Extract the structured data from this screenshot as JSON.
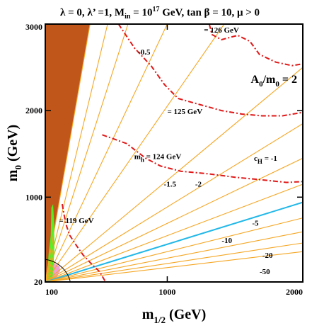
{
  "chart_data": {
    "type": "line",
    "title_parts": {
      "lambda": "λ = 0, λ’ =1, M",
      "min_sub": "in",
      "mass": " = 10",
      "exp": "17",
      "rest": " GeV, tan β = 10,  μ > 0"
    },
    "inset_label": {
      "main": "A",
      "sub": "0",
      "rest": "/m",
      "sub2": "0",
      "tail": " = 2"
    },
    "xlabel": {
      "main": "m",
      "sub": "1/2",
      "rest": " (GeV)"
    },
    "ylabel": {
      "main": "m",
      "sub": "0",
      "rest": " (GeV)"
    },
    "xlim": [
      100,
      2000
    ],
    "ylim": [
      20,
      3000
    ],
    "xticks": [
      {
        "value": 100,
        "label": "100"
      },
      {
        "value": 1000,
        "label": "1000"
      },
      {
        "value": 2000,
        "label": "2000"
      }
    ],
    "yticks": [
      {
        "value": 20,
        "label": "20"
      },
      {
        "value": 1000,
        "label": "1000"
      },
      {
        "value": 2000,
        "label": "2000"
      },
      {
        "value": 3000,
        "label": "3000"
      }
    ],
    "colors": {
      "stau_lsp": "#c0561a",
      "cosmo_green": "#55ee22",
      "pink": "#f0a0d0",
      "cH": "#f5a623",
      "cH_zero": "#22b8e8",
      "mh": "#e01818",
      "frame": "#000000"
    },
    "stau_region": [
      [
        100,
        40
      ],
      [
        430,
        3000
      ],
      [
        100,
        3000
      ]
    ],
    "green_strip": [
      [
        128,
        30
      ],
      [
        152,
        30
      ],
      [
        160,
        200
      ],
      [
        168,
        420
      ],
      [
        165,
        700
      ],
      [
        158,
        920
      ],
      [
        145,
        880
      ],
      [
        140,
        560
      ],
      [
        125,
        350
      ],
      [
        112,
        80
      ],
      [
        108,
        30
      ]
    ],
    "pink_region": [
      [
        110,
        60
      ],
      [
        150,
        250
      ],
      [
        205,
        200
      ],
      [
        210,
        150
      ],
      [
        180,
        60
      ]
    ],
    "cH_lines": [
      {
        "label": "",
        "points": [
          [
            100,
            20
          ],
          [
            430,
            3000
          ]
        ]
      },
      {
        "label": "",
        "points": [
          [
            100,
            20
          ],
          [
            560,
            3000
          ]
        ]
      },
      {
        "label": "-0.5",
        "points": [
          [
            100,
            20
          ],
          [
            710,
            3000
          ]
        ]
      },
      {
        "label": "",
        "points": [
          [
            100,
            20
          ],
          [
            1000,
            3000
          ]
        ]
      },
      {
        "label": "",
        "points": [
          [
            100,
            20
          ],
          [
            1420,
            3000
          ]
        ]
      },
      {
        "label": "",
        "points": [
          [
            100,
            20
          ],
          [
            2000,
            2500
          ]
        ]
      },
      {
        "label": "c_H = -1",
        "points": [
          [
            100,
            20
          ],
          [
            2000,
            1850
          ]
        ]
      },
      {
        "label": "-1.5",
        "points": [
          [
            100,
            20
          ],
          [
            2000,
            1450
          ]
        ]
      },
      {
        "label": "-2",
        "points": [
          [
            100,
            20
          ],
          [
            2000,
            1150
          ]
        ]
      },
      {
        "label": "0",
        "points": [
          [
            100,
            20
          ],
          [
            2000,
            940
          ]
        ]
      },
      {
        "label": "-5",
        "points": [
          [
            100,
            20
          ],
          [
            2000,
            760
          ]
        ]
      },
      {
        "label": "-10",
        "points": [
          [
            100,
            20
          ],
          [
            2000,
            600
          ]
        ]
      },
      {
        "label": "-20",
        "points": [
          [
            100,
            20
          ],
          [
            2000,
            470
          ]
        ]
      },
      {
        "label": "-50",
        "points": [
          [
            100,
            20
          ],
          [
            2000,
            370
          ]
        ]
      }
    ],
    "cH_labels": [
      {
        "text": "-0.5",
        "x": 830,
        "y": 2650
      },
      {
        "text": "-1.5",
        "x": 1020,
        "y": 1120
      },
      {
        "text": "-2",
        "x": 1230,
        "y": 1120
      },
      {
        "text": "-5",
        "x": 1650,
        "y": 670
      },
      {
        "text": "-10",
        "x": 1440,
        "y": 470
      },
      {
        "text": "-20",
        "x": 1740,
        "y": 300
      },
      {
        "text": "-50",
        "x": 1720,
        "y": 110
      }
    ],
    "cH_eq_label": {
      "main": "c",
      "sub": "H",
      "rest": " = -1",
      "x": 1640,
      "y": 1420
    },
    "mh_contours": [
      {
        "label": "= 126 GeV",
        "points": [
          [
            1310,
            3000
          ],
          [
            1330,
            2880
          ],
          [
            1400,
            2820
          ],
          [
            1520,
            2870
          ],
          [
            1610,
            2800
          ],
          [
            1680,
            2650
          ],
          [
            1800,
            2560
          ],
          [
            1920,
            2520
          ],
          [
            2000,
            2540
          ]
        ]
      },
      {
        "label": "= 125 GeV",
        "points": [
          [
            640,
            3000
          ],
          [
            760,
            2720
          ],
          [
            880,
            2520
          ],
          [
            980,
            2300
          ],
          [
            1080,
            2140
          ],
          [
            1240,
            2070
          ],
          [
            1400,
            2000
          ],
          [
            1550,
            1960
          ],
          [
            1700,
            1940
          ],
          [
            1850,
            1940
          ],
          [
            2000,
            1980
          ]
        ]
      },
      {
        "label": "m_h = 124 GeV",
        "points": [
          [
            520,
            1720
          ],
          [
            700,
            1620
          ],
          [
            840,
            1450
          ],
          [
            950,
            1360
          ],
          [
            1100,
            1300
          ],
          [
            1300,
            1270
          ],
          [
            1500,
            1230
          ],
          [
            1700,
            1200
          ],
          [
            1880,
            1170
          ],
          [
            2000,
            1180
          ]
        ]
      },
      {
        "label": "= 119 GeV",
        "points": [
          [
            225,
            920
          ],
          [
            250,
            700
          ],
          [
            280,
            560
          ],
          [
            330,
            440
          ],
          [
            380,
            330
          ],
          [
            440,
            230
          ],
          [
            500,
            140
          ],
          [
            545,
            20
          ]
        ]
      }
    ],
    "mh_label_texts": [
      {
        "text": "= 126 GeV",
        "x": 1400,
        "y": 2900
      },
      {
        "text": "= 125 GeV",
        "x": 1130,
        "y": 1960
      },
      {
        "text": "= 119 GeV",
        "x": 330,
        "y": 700
      }
    ],
    "mh_eq_label": {
      "main": "m",
      "sub": "h",
      "rest": "  = 124 GeV",
      "x": 930,
      "y": 1440
    }
  }
}
